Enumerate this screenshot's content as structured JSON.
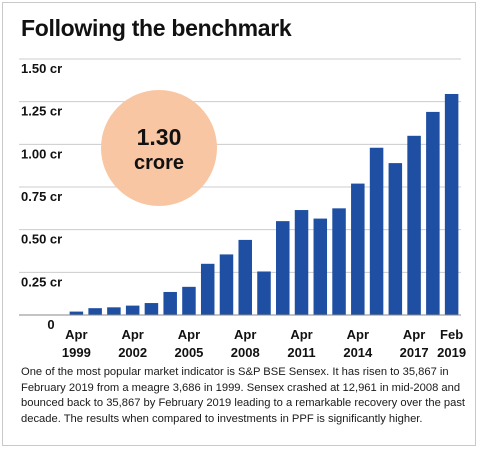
{
  "title": "Following the benchmark",
  "caption": "One of the most popular market indicator is S&P BSE Sensex. It has risen to 35,867 in February 2019 from a meagre 3,686 in 1999. Sensex crashed at 12,961 in mid-2008 and bounced back to 35,867 by February 2019 leading to a remarkable recovery over the past decade. The results when compared to investments in PPF is significantly higher.",
  "callout": {
    "line1": "1.30",
    "line2": "crore"
  },
  "colors": {
    "bar": "#1e4fa3",
    "callout": "#f8c6a3",
    "grid": "#cccccc",
    "axis": "#888888"
  },
  "chart_data": {
    "type": "bar",
    "unit": "crore",
    "ylim": [
      0,
      1.5
    ],
    "y_ticks": [
      {
        "value": 1.5,
        "label": "1.50 cr"
      },
      {
        "value": 1.25,
        "label": "1.25 cr"
      },
      {
        "value": 1.0,
        "label": "1.00 cr"
      },
      {
        "value": 0.75,
        "label": "0.75 cr"
      },
      {
        "value": 0.5,
        "label": "0.50 cr"
      },
      {
        "value": 0.25,
        "label": "0.25 cr"
      },
      {
        "value": 0,
        "label": "0"
      }
    ],
    "categories": [
      "1999",
      "2000",
      "2001",
      "2002",
      "2003",
      "2004",
      "2005",
      "2006",
      "2007",
      "2008",
      "2009",
      "2010",
      "2011",
      "2012",
      "2013",
      "2014",
      "2015",
      "2016",
      "2017",
      "2018",
      "2019"
    ],
    "values": [
      0.02,
      0.04,
      0.045,
      0.055,
      0.07,
      0.135,
      0.165,
      0.3,
      0.355,
      0.44,
      0.255,
      0.55,
      0.615,
      0.565,
      0.625,
      0.77,
      0.98,
      0.89,
      1.05,
      1.19,
      1.295
    ],
    "x_tick_labels": [
      {
        "index": 0,
        "line1": "Apr",
        "line2": "1999"
      },
      {
        "index": 3,
        "line1": "Apr",
        "line2": "2002"
      },
      {
        "index": 6,
        "line1": "Apr",
        "line2": "2005"
      },
      {
        "index": 9,
        "line1": "Apr",
        "line2": "2008"
      },
      {
        "index": 12,
        "line1": "Apr",
        "line2": "2011"
      },
      {
        "index": 15,
        "line1": "Apr",
        "line2": "2014"
      },
      {
        "index": 18,
        "line1": "Apr",
        "line2": "2017"
      },
      {
        "index": 20,
        "line1": "Feb",
        "line2": "2019"
      }
    ],
    "grid": true
  }
}
